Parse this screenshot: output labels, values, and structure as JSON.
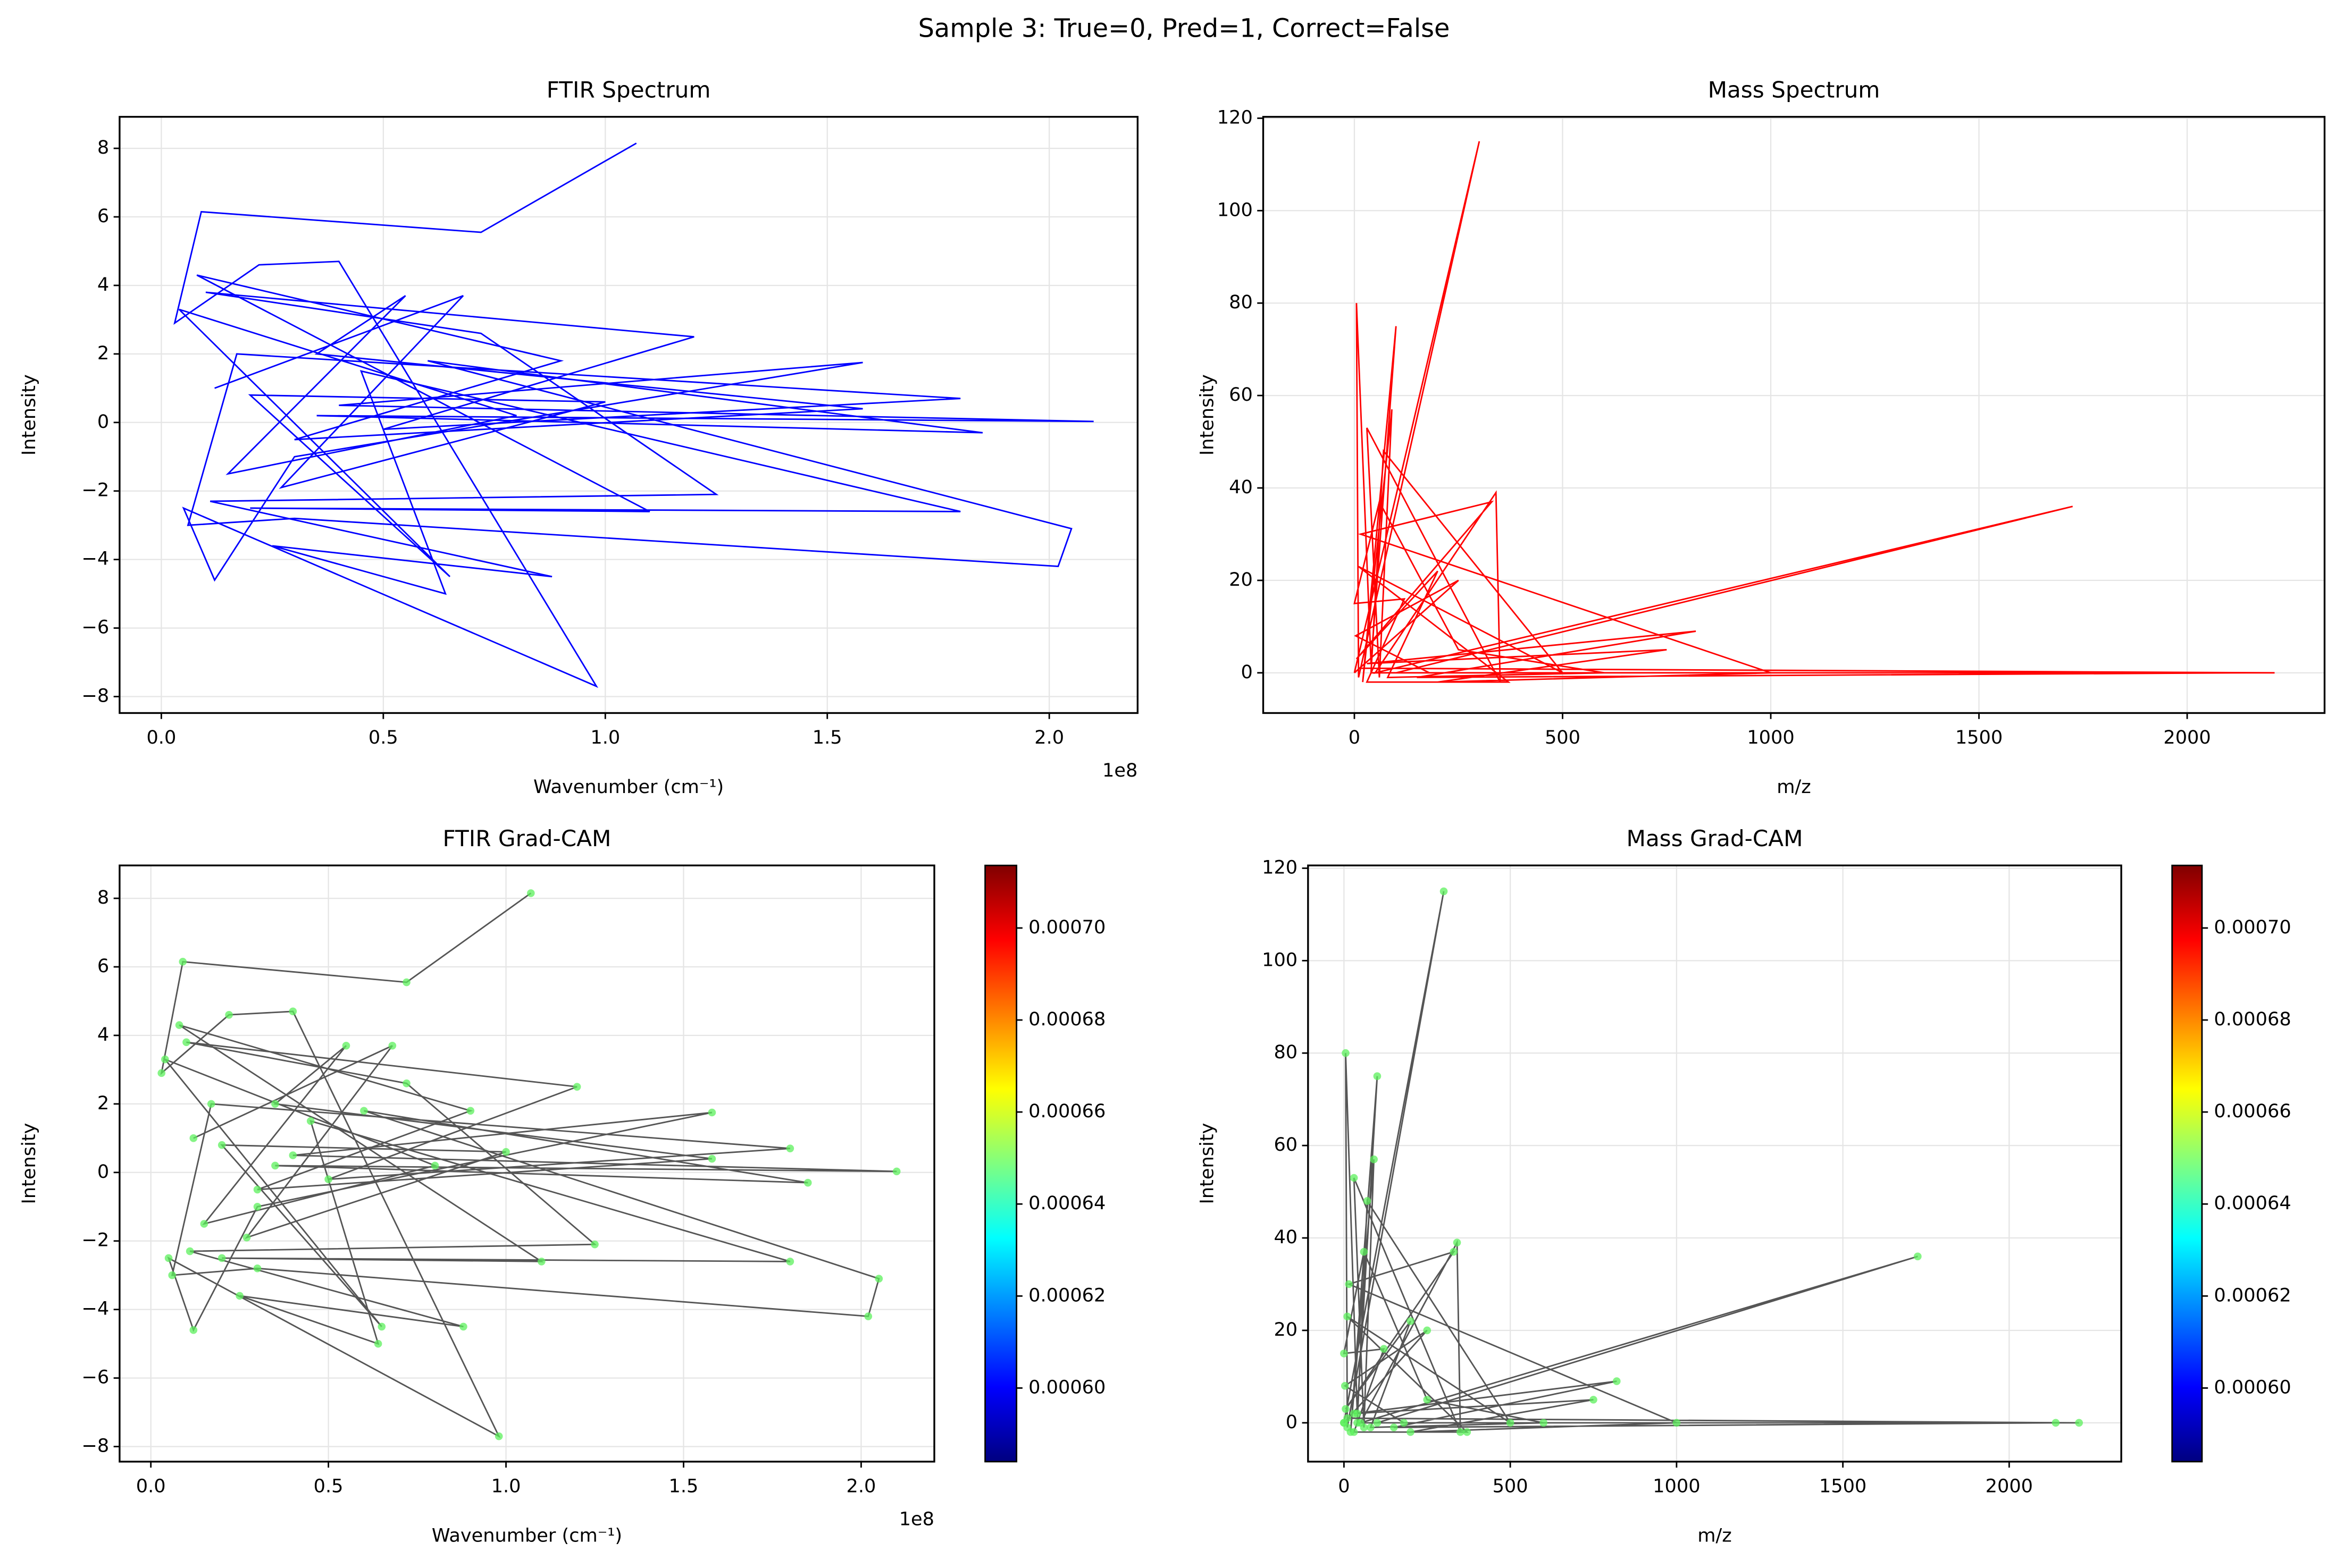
{
  "title": "Sample 3: True=0, Pred=1, Correct=False",
  "chart_data": [
    {
      "type": "line",
      "title": "FTIR Spectrum",
      "xlabel": "Wavenumber (cm⁻¹)",
      "ylabel": "Intensity",
      "x_offset_label": "1e8",
      "color": "#0000ff",
      "grid": true,
      "xlim": [
        -0.094,
        2.199
      ],
      "ylim": [
        -8.48,
        8.92
      ],
      "xticks": [
        {
          "value": 0,
          "label": "0.0"
        },
        0.5,
        {
          "value": 1,
          "label": "1.0"
        },
        1.5,
        {
          "value": 2,
          "label": "2.0"
        }
      ],
      "yticks": [
        {
          "value": -8,
          "label": "−8"
        },
        {
          "value": -6,
          "label": "−6"
        },
        {
          "value": -4,
          "label": "−4"
        },
        {
          "value": -2,
          "label": "−2"
        },
        0,
        2,
        4,
        6,
        8
      ],
      "x": [
        1.07,
        0.72,
        0.09,
        0.03,
        0.22,
        0.4,
        0.98,
        0.05,
        0.12,
        0.3,
        1.58,
        0.4,
        2.1,
        0.35,
        1.85,
        0.6,
        2.05,
        2.02,
        0.3,
        0.06,
        0.17,
        1.8,
        0.5,
        1.2,
        0.1,
        0.72,
        1.25,
        0.11,
        0.88,
        0.25,
        0.64,
        0.45,
        1.8,
        0.2,
        1.1,
        0.08,
        0.9,
        0.3,
        1.58,
        0.35,
        0.55,
        0.15,
        0.8,
        0.04,
        0.65,
        0.2,
        1.0,
        0.27,
        0.68,
        0.12
      ],
      "y": [
        8.15,
        5.55,
        6.15,
        2.9,
        4.6,
        4.7,
        -7.7,
        -2.5,
        -4.6,
        -1.0,
        1.75,
        0.5,
        0.03,
        0.2,
        -0.3,
        1.8,
        -3.1,
        -4.2,
        -2.8,
        -3.0,
        2.0,
        0.7,
        -0.2,
        2.5,
        3.8,
        2.6,
        -2.1,
        -2.3,
        -4.5,
        -3.6,
        -5.0,
        1.5,
        -2.6,
        -2.5,
        -2.6,
        4.3,
        1.8,
        -0.5,
        0.4,
        2.0,
        3.7,
        -1.5,
        0.2,
        3.3,
        -4.5,
        0.8,
        0.6,
        -1.9,
        3.7,
        1.0
      ]
    },
    {
      "type": "line",
      "title": "Mass Spectrum",
      "xlabel": "m/z",
      "ylabel": "Intensity",
      "color": "#ff0000",
      "grid": true,
      "xlim": [
        -219,
        2330
      ],
      "ylim": [
        -8.7,
        120.3
      ],
      "xticks": [
        0,
        500,
        1000,
        1500,
        2000
      ],
      "yticks": [
        0,
        20,
        40,
        60,
        80,
        100,
        120
      ],
      "x": [
        0,
        300,
        10,
        5,
        40,
        100,
        20,
        90,
        60,
        30,
        350,
        340,
        50,
        1725,
        100,
        2210,
        10,
        2140,
        150,
        820,
        30,
        750,
        200,
        1000,
        15,
        330,
        5,
        200,
        80,
        600,
        250,
        60,
        0,
        120,
        30,
        370,
        10,
        500,
        70,
        40,
        180,
        3,
        250,
        0
      ],
      "y": [
        0,
        115,
        -1,
        80,
        2,
        75,
        -2,
        57,
        -1,
        53,
        -2,
        39,
        0,
        36,
        0,
        0,
        1,
        0,
        -1,
        9,
        2,
        5,
        -2,
        0,
        30,
        37,
        3,
        22,
        -1,
        0,
        5,
        37,
        15,
        16,
        -2,
        -2,
        23,
        0,
        48,
        0,
        0,
        8,
        20,
        0
      ]
    },
    {
      "type": "line",
      "title": "FTIR Grad-CAM",
      "xlabel": "Wavenumber (cm⁻¹)",
      "ylabel": "Intensity",
      "x_offset_label": "1e8",
      "color": "#555555",
      "marker_color": "#5cf05c",
      "grid": true,
      "xlim": [
        -0.088,
        2.206
      ],
      "ylim": [
        -8.44,
        8.96
      ],
      "xticks": [
        {
          "value": 0,
          "label": "0.0"
        },
        0.5,
        {
          "value": 1,
          "label": "1.0"
        },
        1.5,
        {
          "value": 2,
          "label": "2.0"
        }
      ],
      "yticks": [
        {
          "value": -8,
          "label": "−8"
        },
        {
          "value": -6,
          "label": "−6"
        },
        {
          "value": -4,
          "label": "−4"
        },
        {
          "value": -2,
          "label": "−2"
        },
        0,
        2,
        4,
        6,
        8
      ],
      "colorbar": {
        "lim": [
          0.000584,
          0.0007136
        ],
        "ticks": [
          {
            "value": 0.0006,
            "label": "0.00060"
          },
          {
            "value": 0.00062,
            "label": "0.00062"
          },
          {
            "value": 0.00064,
            "label": "0.00064"
          },
          {
            "value": 0.00066,
            "label": "0.00066"
          },
          {
            "value": 0.00068,
            "label": "0.00068"
          },
          {
            "value": 0.0007,
            "label": "0.00070"
          }
        ]
      },
      "x": [
        1.07,
        0.72,
        0.09,
        0.03,
        0.22,
        0.4,
        0.98,
        0.05,
        0.12,
        0.3,
        1.58,
        0.4,
        2.1,
        0.35,
        1.85,
        0.6,
        2.05,
        2.02,
        0.3,
        0.06,
        0.17,
        1.8,
        0.5,
        1.2,
        0.1,
        0.72,
        1.25,
        0.11,
        0.88,
        0.25,
        0.64,
        0.45,
        1.8,
        0.2,
        1.1,
        0.08,
        0.9,
        0.3,
        1.58,
        0.35,
        0.55,
        0.15,
        0.8,
        0.04,
        0.65,
        0.2,
        1.0,
        0.27,
        0.68,
        0.12
      ],
      "y": [
        8.15,
        5.55,
        6.15,
        2.9,
        4.6,
        4.7,
        -7.7,
        -2.5,
        -4.6,
        -1.0,
        1.75,
        0.5,
        0.03,
        0.2,
        -0.3,
        1.8,
        -3.1,
        -4.2,
        -2.8,
        -3.0,
        2.0,
        0.7,
        -0.2,
        2.5,
        3.8,
        2.6,
        -2.1,
        -2.3,
        -4.5,
        -3.6,
        -5.0,
        1.5,
        -2.6,
        -2.5,
        -2.6,
        4.3,
        1.8,
        -0.5,
        0.4,
        2.0,
        3.7,
        -1.5,
        0.2,
        3.3,
        -4.5,
        0.8,
        0.6,
        -1.9,
        3.7,
        1.0
      ]
    },
    {
      "type": "line",
      "title": "Mass Grad-CAM",
      "xlabel": "m/z",
      "ylabel": "Intensity",
      "color": "#555555",
      "marker_color": "#5cf05c",
      "grid": true,
      "xlim": [
        -108,
        2337
      ],
      "ylim": [
        -8.4,
        120.6
      ],
      "xticks": [
        0,
        500,
        1000,
        1500,
        2000
      ],
      "yticks": [
        0,
        20,
        40,
        60,
        80,
        100,
        120
      ],
      "colorbar": {
        "lim": [
          0.000584,
          0.0007136
        ],
        "ticks": [
          {
            "value": 0.0006,
            "label": "0.00060"
          },
          {
            "value": 0.00062,
            "label": "0.00062"
          },
          {
            "value": 0.00064,
            "label": "0.00064"
          },
          {
            "value": 0.00066,
            "label": "0.00066"
          },
          {
            "value": 0.00068,
            "label": "0.00068"
          },
          {
            "value": 0.0007,
            "label": "0.00070"
          }
        ]
      },
      "x": [
        0,
        300,
        10,
        5,
        40,
        100,
        20,
        90,
        60,
        30,
        350,
        340,
        50,
        1725,
        100,
        2210,
        10,
        2140,
        150,
        820,
        30,
        750,
        200,
        1000,
        15,
        330,
        5,
        200,
        80,
        600,
        250,
        60,
        0,
        120,
        30,
        370,
        10,
        500,
        70,
        40,
        180,
        3,
        250,
        0
      ],
      "y": [
        0,
        115,
        -1,
        80,
        2,
        75,
        -2,
        57,
        -1,
        53,
        -2,
        39,
        0,
        36,
        0,
        0,
        1,
        0,
        -1,
        9,
        2,
        5,
        -2,
        0,
        30,
        37,
        3,
        22,
        -1,
        0,
        5,
        37,
        15,
        16,
        -2,
        -2,
        23,
        0,
        48,
        0,
        0,
        8,
        20,
        0
      ]
    }
  ]
}
